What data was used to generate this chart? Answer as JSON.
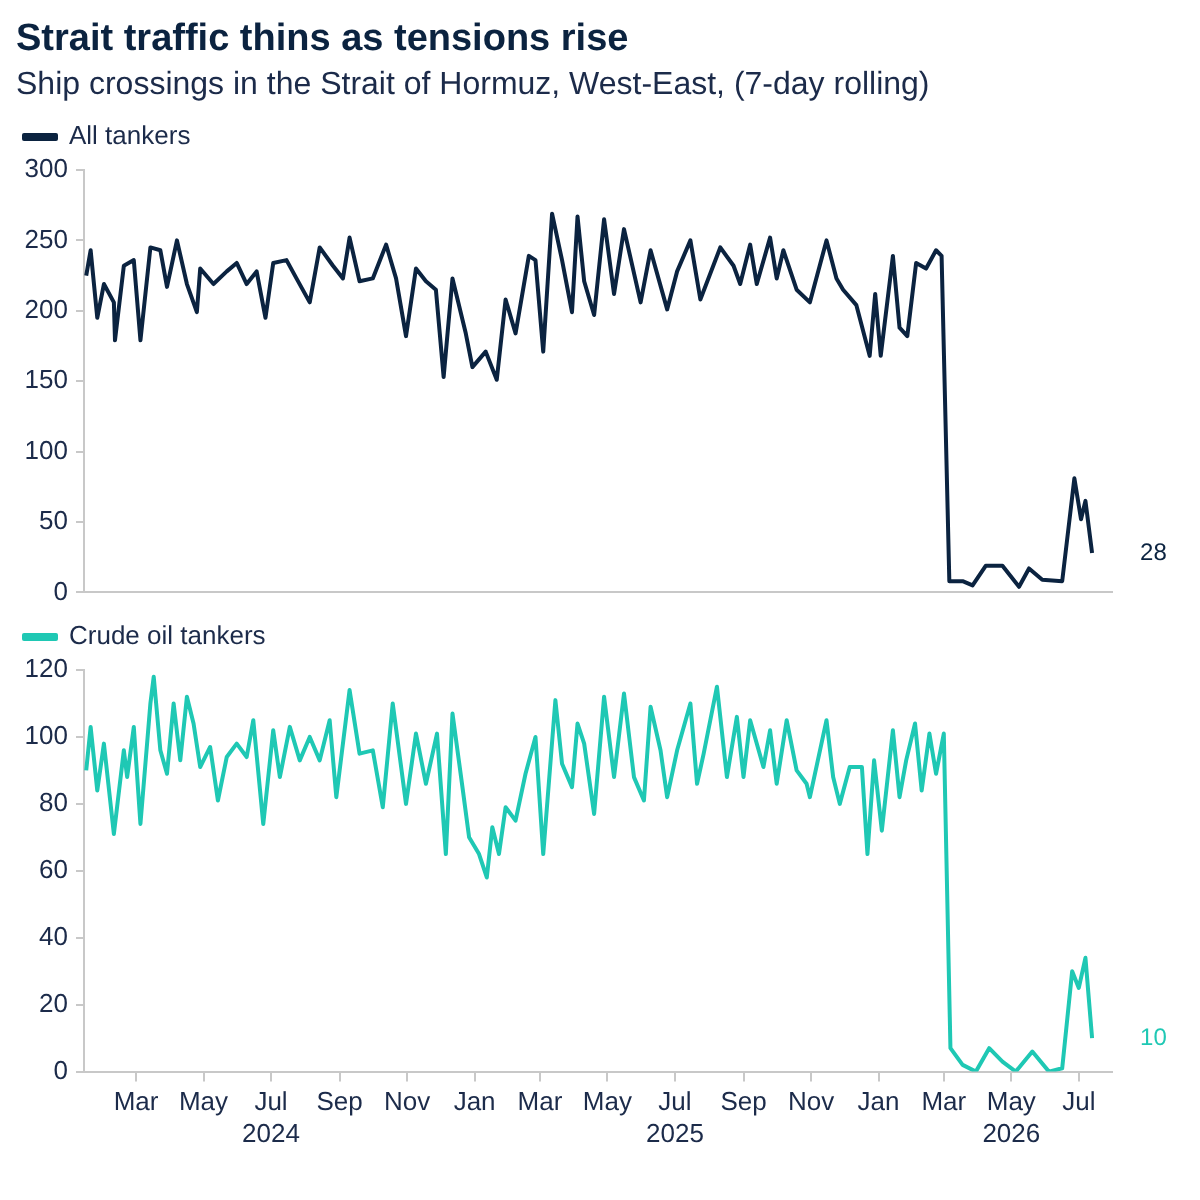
{
  "chart_data": [
    {
      "type": "line",
      "title": "Strait traffic thins as tensions rise",
      "subtitle": "Ship crossings in the Strait of Hormuz, West-East, (7-day rolling)",
      "xlim": [
        "2024-01-14",
        "2026-07-31"
      ],
      "ylim": [
        0,
        300
      ],
      "yticks": [
        0,
        50,
        100,
        150,
        200,
        250,
        300
      ],
      "grid": false,
      "legend": "top left",
      "tick_labels": "y",
      "marker": "none",
      "line_style": "solid",
      "annotations": [
        {
          "text": "28",
          "x": "2026-07-13",
          "y": 28
        }
      ],
      "series": [
        {
          "name": "All tankers",
          "color": "#0b2340",
          "x": [
            "2024-01-16",
            "2024-01-20",
            "2024-01-26",
            "2024-02-01",
            "2024-02-10",
            "2024-02-11",
            "2024-02-19",
            "2024-02-28",
            "2024-03-05",
            "2024-03-14",
            "2024-03-23",
            "2024-03-29",
            "2024-04-07",
            "2024-04-16",
            "2024-04-25",
            "2024-04-28",
            "2024-05-10",
            "2024-05-22",
            "2024-05-31",
            "2024-06-09",
            "2024-06-18",
            "2024-06-26",
            "2024-07-03",
            "2024-07-15",
            "2024-07-24",
            "2024-08-05",
            "2024-08-14",
            "2024-08-26",
            "2024-09-04",
            "2024-09-10",
            "2024-09-19",
            "2024-10-01",
            "2024-10-13",
            "2024-10-22",
            "2024-10-31",
            "2024-11-09",
            "2024-11-18",
            "2024-11-27",
            "2024-12-04",
            "2024-12-12",
            "2024-12-24",
            "2024-12-30",
            "2025-01-11",
            "2025-01-21",
            "2025-01-29",
            "2025-02-07",
            "2025-02-19",
            "2025-02-25",
            "2025-03-04",
            "2025-03-12",
            "2025-03-21",
            "2025-03-30",
            "2025-04-04",
            "2025-04-10",
            "2025-04-19",
            "2025-04-28",
            "2025-05-07",
            "2025-05-16",
            "2025-05-31",
            "2025-06-09",
            "2025-06-24",
            "2025-07-03",
            "2025-07-15",
            "2025-07-24",
            "2025-08-11",
            "2025-08-23",
            "2025-08-29",
            "2025-09-07",
            "2025-09-13",
            "2025-09-25",
            "2025-10-01",
            "2025-10-07",
            "2025-10-19",
            "2025-10-31",
            "2025-11-15",
            "2025-11-24",
            "2025-11-30",
            "2025-12-12",
            "2025-12-24",
            "2025-12-29",
            "2026-01-03",
            "2026-01-14",
            "2026-01-20",
            "2026-01-27",
            "2026-02-04",
            "2026-02-13",
            "2026-02-22",
            "2026-02-27",
            "2026-03-06",
            "2026-03-18",
            "2026-03-27",
            "2026-04-08",
            "2026-04-23",
            "2026-05-08",
            "2026-05-17",
            "2026-05-29",
            "2026-06-16",
            "2026-06-27",
            "2026-07-03",
            "2026-07-07",
            "2026-07-13"
          ],
          "values": [
            225,
            243,
            195,
            219,
            206,
            179,
            232,
            236,
            179,
            245,
            243,
            217,
            250,
            219,
            199,
            230,
            219,
            228,
            234,
            219,
            228,
            195,
            234,
            236,
            223,
            206,
            245,
            232,
            223,
            252,
            221,
            223,
            247,
            223,
            182,
            230,
            221,
            215,
            153,
            223,
            184,
            160,
            171,
            151,
            208,
            184,
            239,
            236,
            171,
            269,
            236,
            199,
            267,
            221,
            197,
            265,
            212,
            258,
            206,
            243,
            201,
            228,
            250,
            208,
            245,
            232,
            219,
            247,
            219,
            252,
            223,
            243,
            215,
            206,
            250,
            223,
            215,
            204,
            168,
            212,
            168,
            239,
            188,
            182,
            234,
            230,
            243,
            239,
            8,
            8,
            5,
            19,
            19,
            4,
            17,
            9,
            8,
            81,
            52,
            65,
            28
          ]
        }
      ]
    },
    {
      "type": "line",
      "xlim": [
        "2024-01-14",
        "2026-07-31"
      ],
      "ylim": [
        0,
        120
      ],
      "yticks": [
        0,
        20,
        40,
        60,
        80,
        100,
        120
      ],
      "grid": false,
      "legend": "top left",
      "marker": "none",
      "line_style": "solid",
      "xticks": [
        {
          "value": "2024-03-01",
          "label": "Mar"
        },
        {
          "value": "2024-05-01",
          "label": "May"
        },
        {
          "value": "2024-07-01",
          "label": "Jul\n2024"
        },
        {
          "value": "2024-09-01",
          "label": "Sep"
        },
        {
          "value": "2024-11-01",
          "label": "Nov"
        },
        {
          "value": "2025-01-01",
          "label": "Jan"
        },
        {
          "value": "2025-03-01",
          "label": "Mar"
        },
        {
          "value": "2025-05-01",
          "label": "May"
        },
        {
          "value": "2025-07-01",
          "label": "Jul\n2025"
        },
        {
          "value": "2025-09-01",
          "label": "Sep"
        },
        {
          "value": "2025-11-01",
          "label": "Nov"
        },
        {
          "value": "2026-01-01",
          "label": "Jan"
        },
        {
          "value": "2026-03-01",
          "label": "Mar"
        },
        {
          "value": "2026-05-01",
          "label": "May\n2026"
        },
        {
          "value": "2026-07-01",
          "label": "Jul"
        }
      ],
      "annotations": [
        {
          "text": "10",
          "x": "2026-07-13",
          "y": 10
        }
      ],
      "series": [
        {
          "name": "Crude oil tankers",
          "color": "#1fc8b4",
          "x": [
            "2024-01-16",
            "2024-01-20",
            "2024-01-26",
            "2024-02-01",
            "2024-02-10",
            "2024-02-19",
            "2024-02-22",
            "2024-02-28",
            "2024-03-05",
            "2024-03-14",
            "2024-03-17",
            "2024-03-23",
            "2024-03-29",
            "2024-04-04",
            "2024-04-10",
            "2024-04-16",
            "2024-04-22",
            "2024-04-28",
            "2024-05-07",
            "2024-05-14",
            "2024-05-22",
            "2024-05-31",
            "2024-06-09",
            "2024-06-15",
            "2024-06-24",
            "2024-07-03",
            "2024-07-09",
            "2024-07-18",
            "2024-07-27",
            "2024-08-05",
            "2024-08-14",
            "2024-08-23",
            "2024-08-29",
            "2024-09-10",
            "2024-09-19",
            "2024-10-01",
            "2024-10-10",
            "2024-10-19",
            "2024-10-31",
            "2024-11-09",
            "2024-11-18",
            "2024-11-28",
            "2024-12-06",
            "2024-12-12",
            "2024-12-21",
            "2024-12-27",
            "2025-01-05",
            "2025-01-12",
            "2025-01-17",
            "2025-01-23",
            "2025-01-29",
            "2025-02-07",
            "2025-02-16",
            "2025-02-25",
            "2025-03-04",
            "2025-03-15",
            "2025-03-21",
            "2025-03-30",
            "2025-04-04",
            "2025-04-10",
            "2025-04-19",
            "2025-04-28",
            "2025-05-07",
            "2025-05-16",
            "2025-05-25",
            "2025-06-03",
            "2025-06-09",
            "2025-06-18",
            "2025-06-24",
            "2025-07-03",
            "2025-07-15",
            "2025-07-21",
            "2025-07-27",
            "2025-08-08",
            "2025-08-17",
            "2025-08-26",
            "2025-09-01",
            "2025-09-07",
            "2025-09-19",
            "2025-09-25",
            "2025-10-01",
            "2025-10-10",
            "2025-10-19",
            "2025-10-28",
            "2025-10-31",
            "2025-11-15",
            "2025-11-21",
            "2025-11-27",
            "2025-12-06",
            "2025-12-17",
            "2025-12-22",
            "2025-12-28",
            "2026-01-04",
            "2026-01-14",
            "2026-01-20",
            "2026-01-26",
            "2026-02-03",
            "2026-02-09",
            "2026-02-16",
            "2026-02-22",
            "2026-03-01",
            "2026-03-07",
            "2026-03-18",
            "2026-03-30",
            "2026-04-11",
            "2026-04-23",
            "2026-05-05",
            "2026-05-20",
            "2026-06-04",
            "2026-06-16",
            "2026-06-25",
            "2026-07-01",
            "2026-07-07",
            "2026-07-10",
            "2026-07-13"
          ],
          "values": [
            90,
            103,
            84,
            98,
            71,
            96,
            88,
            103,
            74,
            110,
            118,
            96,
            89,
            110,
            93,
            112,
            104,
            91,
            97,
            81,
            94,
            98,
            94,
            105,
            74,
            102,
            88,
            103,
            93,
            100,
            93,
            105,
            82,
            114,
            95,
            96,
            79,
            110,
            80,
            101,
            86,
            101,
            65,
            107,
            85,
            70,
            65,
            58,
            73,
            65,
            79,
            75,
            89,
            100,
            65,
            111,
            92,
            85,
            104,
            98,
            77,
            112,
            88,
            113,
            88,
            81,
            109,
            96,
            82,
            96,
            110,
            86,
            95,
            115,
            88,
            106,
            88,
            105,
            91,
            102,
            86,
            105,
            90,
            86,
            82,
            105,
            88,
            80,
            91,
            91,
            65,
            93,
            72,
            102,
            82,
            93,
            104,
            84,
            101,
            89,
            101,
            7,
            2,
            0,
            7,
            3,
            0,
            6,
            0,
            1,
            30,
            25,
            34,
            22,
            10
          ]
        }
      ]
    }
  ]
}
